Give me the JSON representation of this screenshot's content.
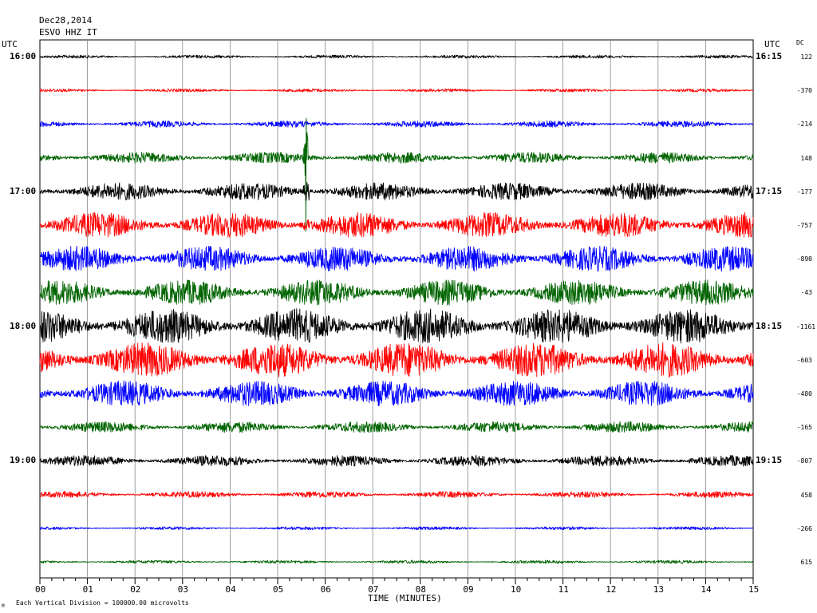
{
  "header": {
    "date": "Dec28,2014",
    "station": "ESVO HHZ IT"
  },
  "left_axis_title": "UTC",
  "right_axis_title": "UTC",
  "dc_title": "DC",
  "footer_note": "Each Vertical Division = 100000.00 microvolts",
  "footer_mark": "M",
  "chart_data": {
    "type": "line",
    "title": "",
    "xlabel": "TIME (MINUTES)",
    "ylabel": "",
    "xlim": [
      0,
      15
    ],
    "x_tick_labels": [
      "00",
      "01",
      "02",
      "03",
      "04",
      "05",
      "06",
      "07",
      "08",
      "09",
      "10",
      "11",
      "12",
      "13",
      "14",
      "15"
    ],
    "left_time_labels": [
      {
        "row": 0,
        "label": "16:00"
      },
      {
        "row": 4,
        "label": "17:00"
      },
      {
        "row": 8,
        "label": "18:00"
      },
      {
        "row": 12,
        "label": "19:00"
      }
    ],
    "right_time_labels": [
      {
        "row": 0,
        "label": "16:15"
      },
      {
        "row": 4,
        "label": "17:15"
      },
      {
        "row": 8,
        "label": "18:15"
      },
      {
        "row": 12,
        "label": "19:15"
      }
    ],
    "series": [
      {
        "color": "#000000",
        "dc": "122",
        "amplitude": 1
      },
      {
        "color": "#ff0000",
        "dc": "-370",
        "amplitude": 1
      },
      {
        "color": "#0000ff",
        "dc": "-214",
        "amplitude": 2
      },
      {
        "color": "#006400",
        "dc": "148",
        "amplitude": 3
      },
      {
        "color": "#000000",
        "dc": "-177",
        "amplitude": 4
      },
      {
        "color": "#ff0000",
        "dc": "-757",
        "amplitude": 5
      },
      {
        "color": "#0000ff",
        "dc": "-890",
        "amplitude": 5
      },
      {
        "color": "#006400",
        "dc": "-43",
        "amplitude": 5
      },
      {
        "color": "#000000",
        "dc": "-1161",
        "amplitude": 6
      },
      {
        "color": "#ff0000",
        "dc": "-603",
        "amplitude": 6
      },
      {
        "color": "#0000ff",
        "dc": "-480",
        "amplitude": 5
      },
      {
        "color": "#006400",
        "dc": "-165",
        "amplitude": 3
      },
      {
        "color": "#000000",
        "dc": "-807",
        "amplitude": 3
      },
      {
        "color": "#ff0000",
        "dc": "458",
        "amplitude": 2
      },
      {
        "color": "#0000ff",
        "dc": "-266",
        "amplitude": 1
      },
      {
        "color": "#006400",
        "dc": "615",
        "amplitude": 1
      }
    ],
    "events": [
      {
        "row": 3,
        "minute": 5.6,
        "note": "large spike"
      }
    ],
    "grid": true
  }
}
